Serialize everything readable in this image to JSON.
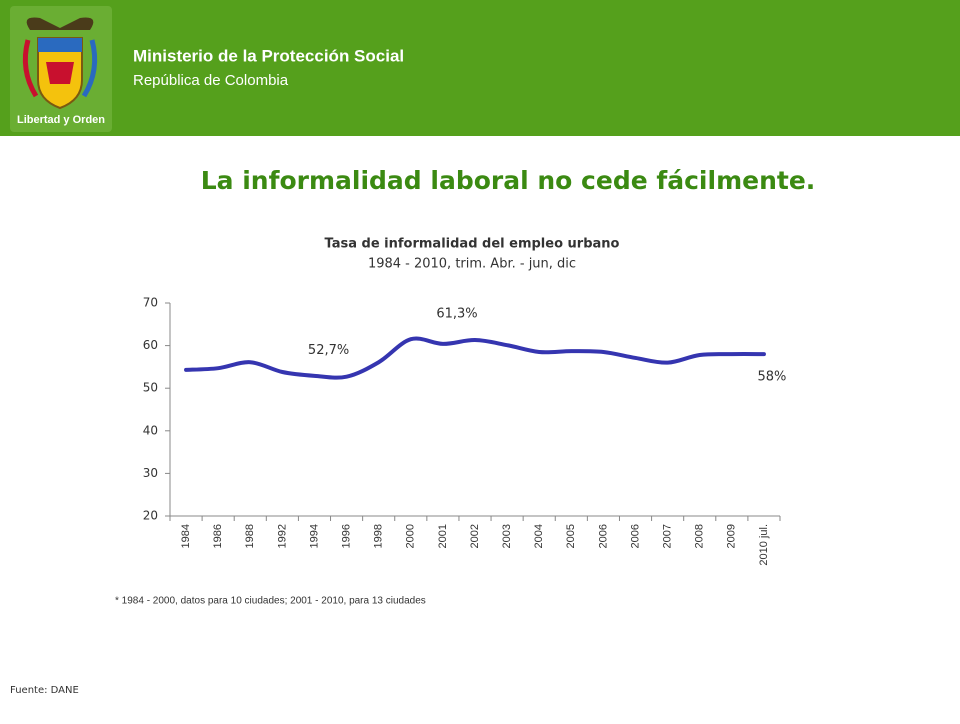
{
  "header": {
    "ministry": "Ministerio de la Protección Social",
    "country": "República de Colombia",
    "motto": "Libertad y Orden"
  },
  "slide_title": "La informalidad laboral no cede fácilmente.",
  "chart_data": {
    "type": "line",
    "title": "Tasa de informalidad del empleo urbano",
    "subtitle": "1984 - 2010, trim. Abr. - jun, dic",
    "categories": [
      "1984",
      "1986",
      "1988",
      "1992",
      "1994",
      "1996",
      "1998",
      "2000",
      "2001",
      "2002",
      "2003",
      "2004",
      "2005",
      "2006",
      "2006",
      "2007",
      "2008",
      "2009",
      "2010 jul."
    ],
    "series": [
      {
        "name": "Tasa de informalidad",
        "color": "#3535b0",
        "values": [
          54.3,
          54.7,
          56.1,
          53.8,
          52.9,
          52.7,
          56.1,
          61.5,
          60.4,
          61.3,
          60.1,
          58.5,
          58.7,
          58.5,
          57.1,
          56.0,
          57.8,
          58.0,
          58
        ],
        "value_labels": [
          null,
          null,
          null,
          null,
          null,
          "52,7%",
          null,
          null,
          null,
          "61,3%",
          null,
          null,
          null,
          null,
          null,
          null,
          null,
          null,
          "58%"
        ]
      }
    ],
    "ylim": [
      20,
      70
    ],
    "yticks": [
      20,
      30,
      40,
      50,
      60,
      70
    ]
  },
  "footnote": "* 1984 - 2000, datos para 10 ciudades; 2001 - 2010,  para 13 ciudades",
  "source": "Fuente: DANE"
}
